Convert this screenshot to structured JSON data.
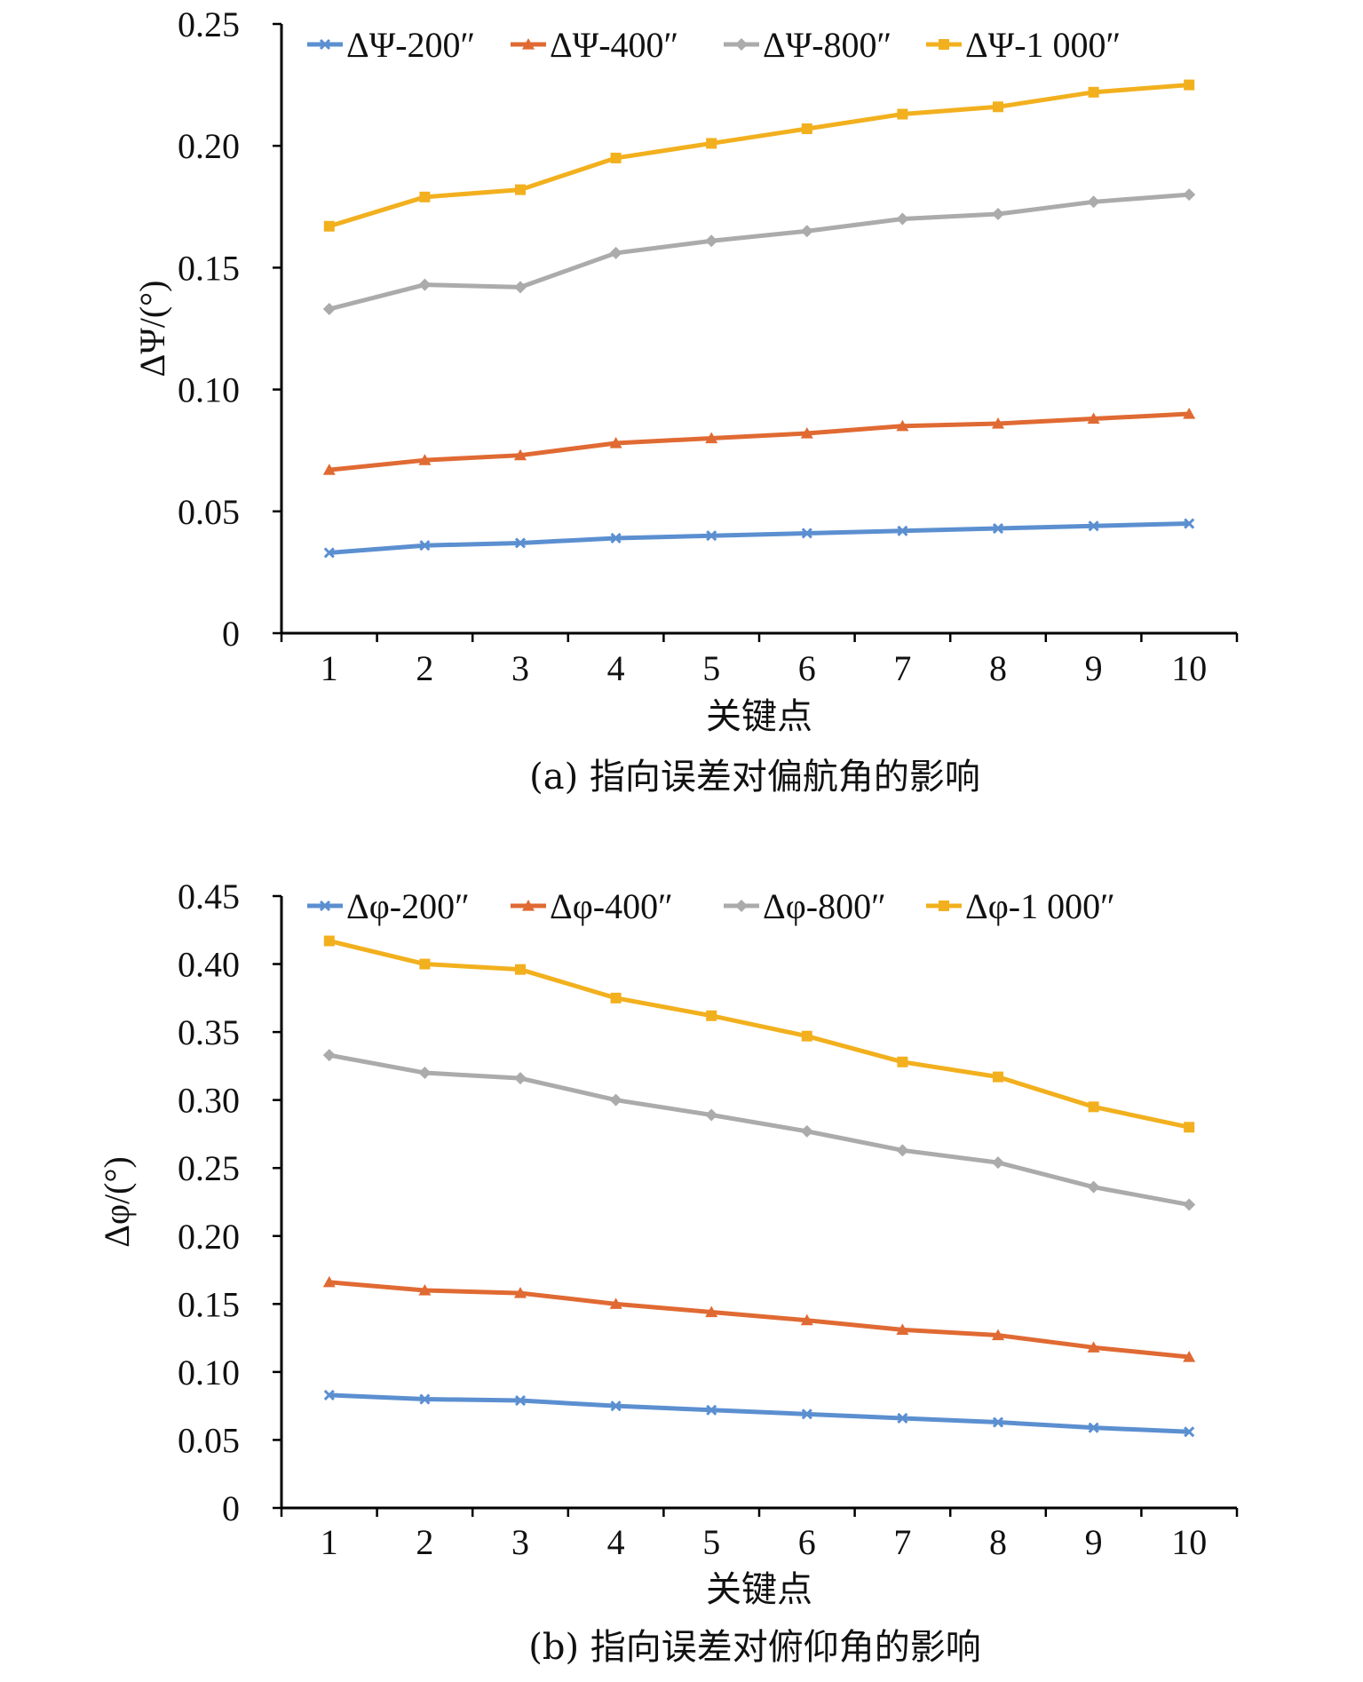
{
  "chart_data": [
    {
      "type": "line",
      "caption": "(a) 指向误差对偏航角的影响",
      "xlabel": "关键点",
      "ylabel": "ΔΨ/(°)",
      "x": [
        1,
        2,
        3,
        4,
        5,
        6,
        7,
        8,
        9,
        10
      ],
      "ylim": [
        0,
        0.25
      ],
      "yticks": [
        "0",
        "0.05",
        "0.10",
        "0.15",
        "0.20",
        "0.25"
      ],
      "grid": false,
      "legend_position": "top",
      "series": [
        {
          "name": "ΔΨ-200″",
          "color": "#5B8FD0",
          "marker": "x",
          "values": [
            0.033,
            0.036,
            0.037,
            0.039,
            0.04,
            0.041,
            0.042,
            0.043,
            0.044,
            0.045
          ]
        },
        {
          "name": "ΔΨ-400″",
          "color": "#E06A33",
          "marker": "triangle",
          "values": [
            0.067,
            0.071,
            0.073,
            0.078,
            0.08,
            0.082,
            0.085,
            0.086,
            0.088,
            0.09
          ]
        },
        {
          "name": "ΔΨ-800″",
          "color": "#ABABAB",
          "marker": "diamond",
          "values": [
            0.133,
            0.143,
            0.142,
            0.156,
            0.161,
            0.165,
            0.17,
            0.172,
            0.177,
            0.18
          ]
        },
        {
          "name": "ΔΨ-1 000″",
          "color": "#F2B01E",
          "marker": "square",
          "values": [
            0.167,
            0.179,
            0.182,
            0.195,
            0.201,
            0.207,
            0.213,
            0.216,
            0.222,
            0.225
          ]
        }
      ]
    },
    {
      "type": "line",
      "caption": "(b) 指向误差对俯仰角的影响",
      "xlabel": "关键点",
      "ylabel": "Δφ/(°)",
      "x": [
        1,
        2,
        3,
        4,
        5,
        6,
        7,
        8,
        9,
        10
      ],
      "ylim": [
        0,
        0.45
      ],
      "yticks": [
        "0",
        "0.05",
        "0.10",
        "0.15",
        "0.20",
        "0.25",
        "0.30",
        "0.35",
        "0.40",
        "0.45"
      ],
      "grid": false,
      "legend_position": "top",
      "series": [
        {
          "name": "Δφ-200″",
          "color": "#5B8FD0",
          "marker": "x",
          "values": [
            0.083,
            0.08,
            0.079,
            0.075,
            0.072,
            0.069,
            0.066,
            0.063,
            0.059,
            0.056
          ]
        },
        {
          "name": "Δφ-400″",
          "color": "#E06A33",
          "marker": "triangle",
          "values": [
            0.166,
            0.16,
            0.158,
            0.15,
            0.144,
            0.138,
            0.131,
            0.127,
            0.118,
            0.111
          ]
        },
        {
          "name": "Δφ-800″",
          "color": "#ABABAB",
          "marker": "diamond",
          "values": [
            0.333,
            0.32,
            0.316,
            0.3,
            0.289,
            0.277,
            0.263,
            0.254,
            0.236,
            0.223
          ]
        },
        {
          "name": "Δφ-1 000″",
          "color": "#F2B01E",
          "marker": "square",
          "values": [
            0.417,
            0.4,
            0.396,
            0.375,
            0.362,
            0.347,
            0.328,
            0.317,
            0.295,
            0.28
          ]
        }
      ]
    }
  ]
}
